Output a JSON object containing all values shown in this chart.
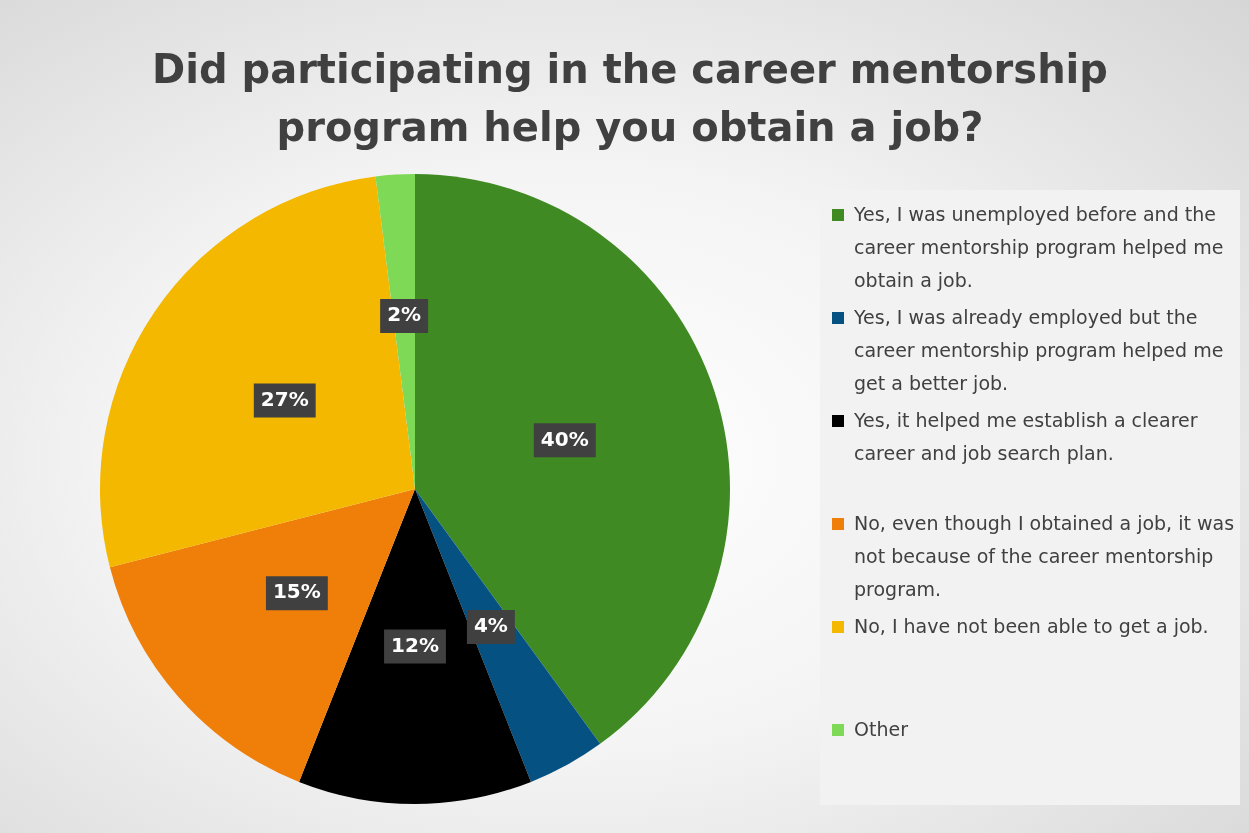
{
  "chart_data": {
    "type": "pie",
    "title": "Did participating in the career mentorship program help you obtain a job?",
    "categories": [
      "Yes, I was unemployed before and the career mentorship program helped me obtain a job.",
      "Yes, I was already employed but the career mentorship program helped me get a better job.",
      "Yes, it helped me establish a clearer career and job search plan.",
      "No, even though I obtained a job, it was not because of the career mentorship program.",
      "No, I have not been able to get a job.",
      "Other"
    ],
    "values": [
      40,
      4,
      12,
      15,
      27,
      2
    ],
    "colors": [
      "#3f8a22",
      "#045182",
      "#000000",
      "#f07f09",
      "#f4b800",
      "#7ed957"
    ],
    "value_labels": [
      "40%",
      "4%",
      "12%",
      "15%",
      "27%",
      "2%"
    ],
    "legend": "right"
  }
}
